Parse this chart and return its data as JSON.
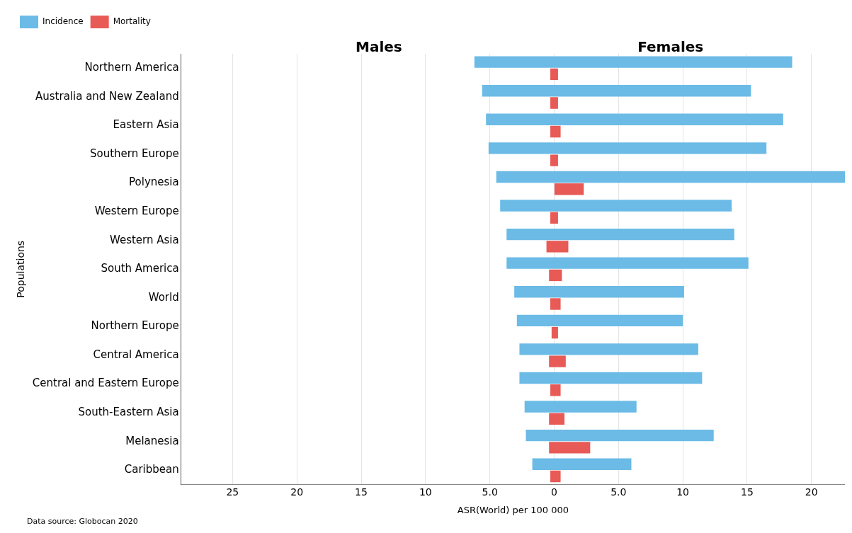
{
  "chart_data": {
    "type": "bar",
    "orientation": "horizontal",
    "categories": [
      "Northern America",
      "Australia and New Zealand",
      "Eastern Asia",
      "Southern Europe",
      "Polynesia",
      "Western Europe",
      "Western Asia",
      "South America",
      "World",
      "Northern Europe",
      "Central America",
      "Central and Eastern Europe",
      "South-Eastern Asia",
      "Melanesia",
      "Caribbean"
    ],
    "series": [
      {
        "name": "Incidence",
        "color": "#6bbbe6",
        "base": [
          -6.2,
          -5.6,
          -5.3,
          -5.1,
          -4.5,
          -4.2,
          -3.7,
          -3.7,
          -3.1,
          -2.9,
          -2.7,
          -2.7,
          -2.3,
          -2.2,
          -1.7
        ],
        "values": [
          24.7,
          20.9,
          23.1,
          21.6,
          27.1,
          18.0,
          17.7,
          18.8,
          13.2,
          12.9,
          13.9,
          14.2,
          8.7,
          14.6,
          7.7
        ]
      },
      {
        "name": "Mortality",
        "color": "#e85a56",
        "base": [
          -0.3,
          -0.3,
          -0.3,
          -0.3,
          0,
          -0.3,
          -0.6,
          -0.4,
          -0.3,
          -0.2,
          -0.4,
          -0.3,
          -0.4,
          -0.4,
          -0.3
        ],
        "values": [
          0.6,
          0.6,
          0.8,
          0.6,
          2.3,
          0.6,
          1.7,
          1.0,
          0.8,
          0.5,
          1.3,
          0.8,
          1.2,
          3.2,
          0.8
        ]
      }
    ],
    "xlim": [
      -29,
      22.6
    ],
    "xticks": [
      {
        "value": -25,
        "label": "25"
      },
      {
        "value": -20,
        "label": "20"
      },
      {
        "value": -15,
        "label": "15"
      },
      {
        "value": -10,
        "label": "10"
      },
      {
        "value": -5,
        "label": "5.0"
      },
      0,
      {
        "value": 5,
        "label": "5.0"
      },
      10,
      15,
      20
    ],
    "xlabel": "ASR(World) per 100 000",
    "ylabel": "Populations",
    "grid": "x",
    "legend": "top left",
    "annotations": [
      "Males",
      "Females",
      "Data source: Globocan 2020"
    ]
  }
}
